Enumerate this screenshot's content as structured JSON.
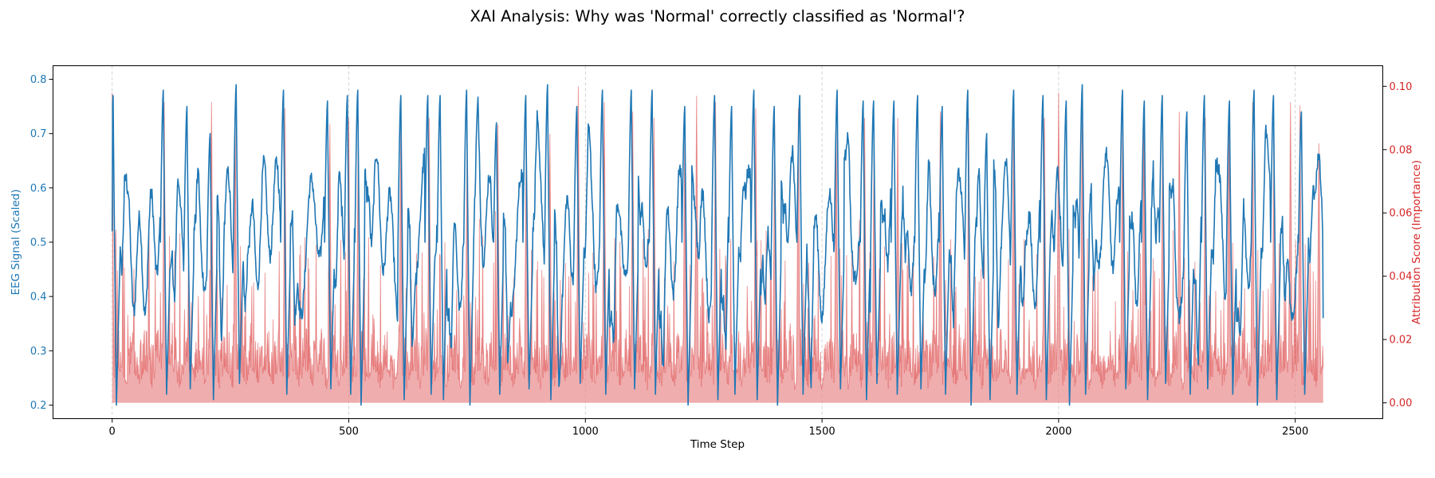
{
  "chart_data": {
    "type": "line",
    "title": "XAI Analysis: Why was 'Normal' correctly classified as 'Normal'?",
    "xlabel": "Time Step",
    "ylabel_left": "EEG Signal (Scaled)",
    "ylabel_right": "Attribution Score (Importance)",
    "xlim": [
      -125,
      2685
    ],
    "ylim_left": [
      0.175,
      0.825
    ],
    "ylim_right": [
      -0.005,
      0.1065
    ],
    "x_ticks": [
      0,
      500,
      1000,
      1500,
      2000,
      2500
    ],
    "y_left_ticks": [
      0.2,
      0.3,
      0.4,
      0.5,
      0.6,
      0.7,
      0.8
    ],
    "y_right_ticks": [
      0.0,
      0.02,
      0.04,
      0.06,
      0.08,
      0.1
    ],
    "y_right_tick_labels": [
      "0.00",
      "0.02",
      "0.04",
      "0.06",
      "0.08",
      "0.10"
    ],
    "x_grid": true,
    "n_points": 2560,
    "series": [
      {
        "role": "eeg_signal",
        "axis": "left",
        "color": "#1f77b4",
        "style": "line",
        "approx_range": [
          0.2,
          0.797
        ],
        "beat_peaks_x": [
          2,
          108,
          158,
          207,
          262,
          362,
          455,
          497,
          519,
          610,
          667,
          693,
          749,
          812,
          874,
          920,
          982,
          1036,
          1097,
          1141,
          1210,
          1273,
          1309,
          1356,
          1399,
          1453,
          1532,
          1587,
          1609,
          1652,
          1702,
          1754,
          1808,
          1848,
          1905,
          1967,
          2016,
          2050,
          2135,
          2181,
          2219,
          2271,
          2308,
          2361,
          2413,
          2454,
          2513
        ],
        "beat_peaks_y": [
          0.77,
          0.78,
          0.75,
          0.7,
          0.79,
          0.78,
          0.76,
          0.77,
          0.78,
          0.77,
          0.77,
          0.77,
          0.78,
          0.72,
          0.77,
          0.79,
          0.75,
          0.78,
          0.78,
          0.78,
          0.75,
          0.77,
          0.75,
          0.78,
          0.75,
          0.77,
          0.78,
          0.76,
          0.76,
          0.76,
          0.77,
          0.75,
          0.78,
          0.7,
          0.78,
          0.77,
          0.76,
          0.79,
          0.78,
          0.76,
          0.77,
          0.74,
          0.77,
          0.76,
          0.78,
          0.77,
          0.74
        ],
        "troughs_y": [
          0.2,
          0.22,
          0.23,
          0.21,
          0.24,
          0.22,
          0.23,
          0.22,
          0.2,
          0.21,
          0.22,
          0.21
        ]
      },
      {
        "role": "attribution",
        "axis": "right",
        "color": "#d62728",
        "style": "filled_area",
        "fill_alpha": 0.38,
        "baseline": 0.0,
        "approx_range": [
          0.0,
          0.101
        ],
        "spike_x": [
          0,
          110,
          210,
          260,
          365,
          460,
          500,
          520,
          610,
          670,
          750,
          815,
          875,
          925,
          985,
          1040,
          1100,
          1145,
          1210,
          1235,
          1275,
          1360,
          1400,
          1450,
          1530,
          1590,
          1610,
          1660,
          1750,
          1810,
          1905,
          1970,
          2000,
          2050,
          2135,
          2180,
          2220,
          2255,
          2310,
          2360,
          2410,
          2455,
          2490,
          2510,
          2550
        ],
        "spike_y": [
          0.098,
          0.095,
          0.095,
          0.09,
          0.093,
          0.088,
          0.09,
          0.09,
          0.09,
          0.09,
          0.085,
          0.088,
          0.086,
          0.085,
          0.1,
          0.095,
          0.092,
          0.09,
          0.088,
          0.097,
          0.095,
          0.093,
          0.088,
          0.093,
          0.088,
          0.09,
          0.085,
          0.09,
          0.092,
          0.09,
          0.095,
          0.09,
          0.098,
          0.097,
          0.088,
          0.09,
          0.09,
          0.092,
          0.09,
          0.09,
          0.095,
          0.088,
          0.095,
          0.094,
          0.082
        ]
      }
    ]
  },
  "colors": {
    "signal": "#1f77b4",
    "attribution": "#d62728",
    "attribution_fill": "#e88a8b",
    "grid": "#b0b0b0",
    "text": "#000000"
  }
}
